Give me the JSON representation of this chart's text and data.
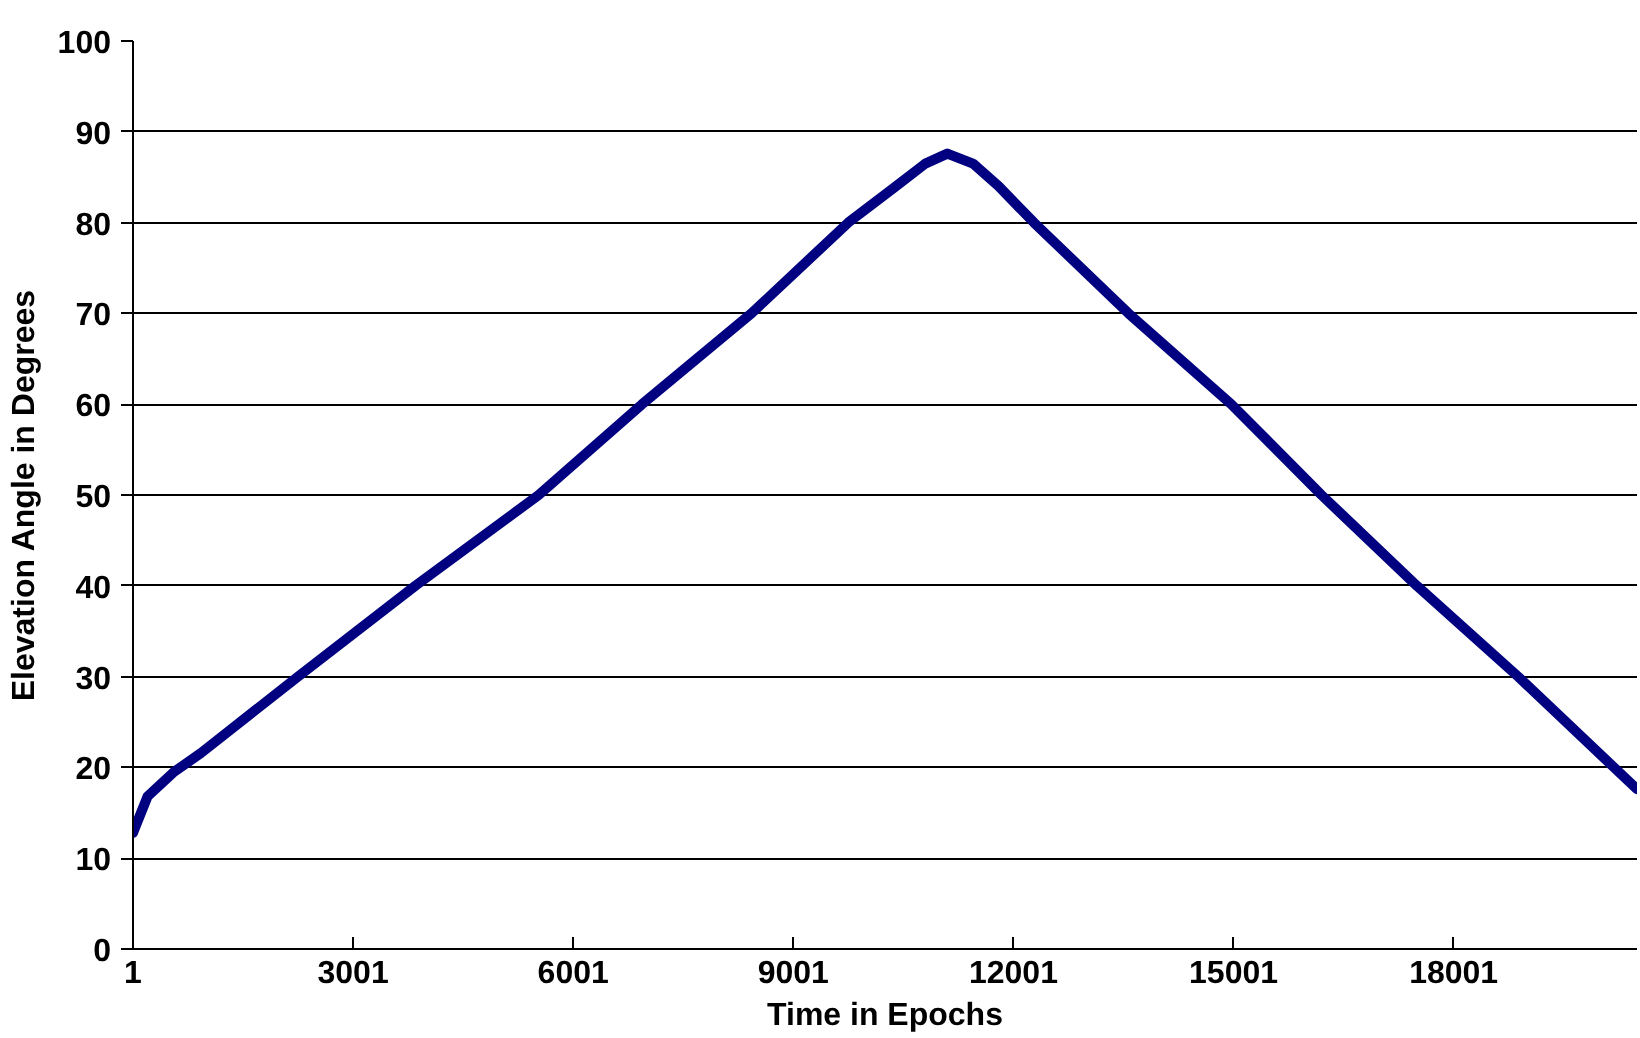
{
  "chart_data": {
    "type": "line",
    "xlabel": "Time in Epochs",
    "ylabel": "Elevation Angle in Degrees",
    "x": [
      1,
      200,
      560,
      930,
      2250,
      3850,
      5530,
      6940,
      8430,
      9750,
      10400,
      10800,
      11100,
      11450,
      11800,
      12280,
      13570,
      14970,
      16200,
      17500,
      18880,
      20500
    ],
    "series": [
      {
        "color": "#000080",
        "values": [
          12.8,
          16.8,
          19.5,
          21.6,
          30,
          40,
          50,
          60,
          70,
          80,
          84,
          86.5,
          87.6,
          86.5,
          84,
          80,
          70,
          60,
          50,
          40,
          30,
          17.6
        ]
      }
    ],
    "xlim": [
      1,
      20500
    ],
    "ylim": [
      0,
      100
    ],
    "xticks": [
      1,
      3001,
      6001,
      9001,
      12001,
      15001,
      18001
    ],
    "yticks": [
      0,
      10,
      20,
      30,
      40,
      50,
      60,
      70,
      80,
      90,
      100
    ],
    "grid": "y",
    "marker": "none",
    "line_style": "solid"
  }
}
